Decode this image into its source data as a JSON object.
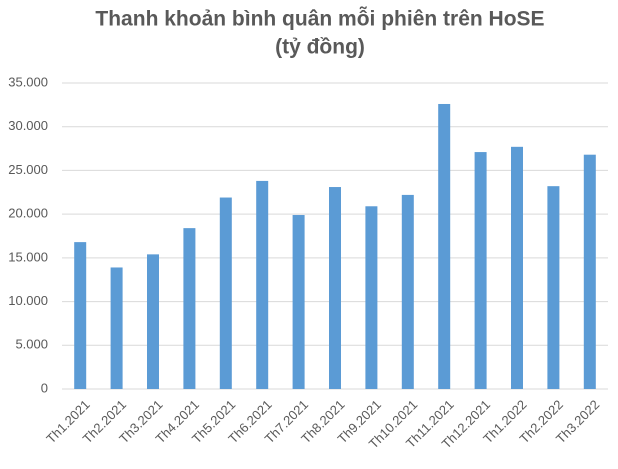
{
  "chart_data": {
    "type": "bar",
    "title": "Thanh khoản bình quân mỗi phiên trên HoSE",
    "subtitle": "(tỷ đồng)",
    "categories": [
      "Th1.2021",
      "Th2.2021",
      "Th3.2021",
      "Th4.2021",
      "Th5.2021",
      "Th6.2021",
      "Th7.2021",
      "Th8.2021",
      "Th9.2021",
      "Th10.2021",
      "Th11.2021",
      "Th12.2021",
      "Th1.2022",
      "Th2.2022",
      "Th3.2022"
    ],
    "values": [
      16800,
      13900,
      15400,
      18400,
      21900,
      23800,
      19900,
      23100,
      20900,
      22200,
      32600,
      27100,
      27700,
      23200,
      26800
    ],
    "color": "#5b9bd5",
    "ylim": [
      0,
      35000
    ],
    "yticks": [
      0,
      {
        "value": 5000,
        "label": "5.000"
      },
      {
        "value": 10000,
        "label": "10.000"
      },
      {
        "value": 15000,
        "label": "15.000"
      },
      {
        "value": 20000,
        "label": "20.000"
      },
      {
        "value": 25000,
        "label": "25.000"
      },
      {
        "value": 30000,
        "label": "30.000"
      },
      {
        "value": 35000,
        "label": "35.000"
      }
    ],
    "grid": true
  }
}
